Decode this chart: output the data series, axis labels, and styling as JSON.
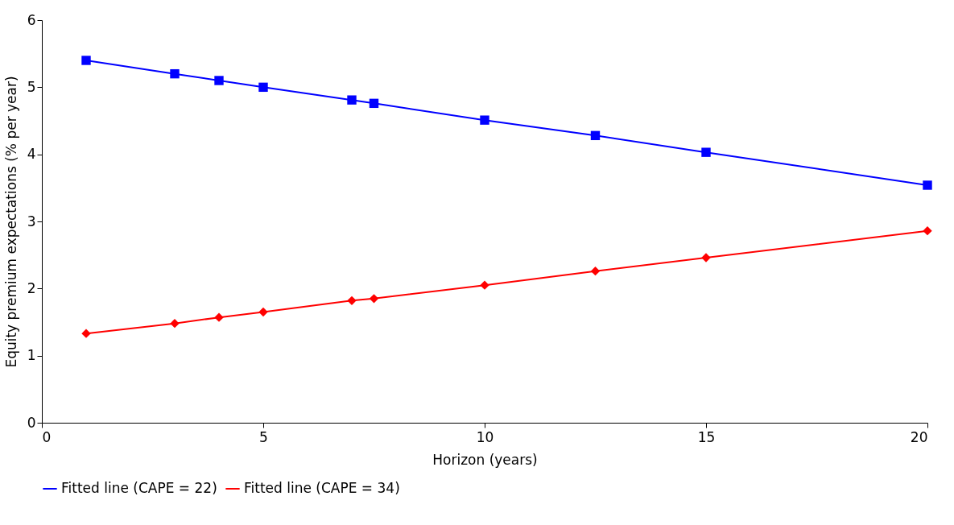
{
  "chart_data": {
    "type": "line",
    "xlabel": "Horizon (years)",
    "ylabel": "Equity premium expectations (% per year)",
    "x": [
      1,
      3,
      4,
      5,
      7,
      7.5,
      10,
      12.5,
      15,
      20
    ],
    "series": [
      {
        "name": "Fitted line (CAPE = 22)",
        "color": "#0000ff",
        "marker": "square",
        "values": [
          5.4,
          5.2,
          5.1,
          5.0,
          4.81,
          4.76,
          4.51,
          4.28,
          4.03,
          3.54
        ]
      },
      {
        "name": "Fitted line (CAPE = 34)",
        "color": "#ff0000",
        "marker": "diamond",
        "values": [
          1.33,
          1.48,
          1.57,
          1.65,
          1.82,
          1.85,
          2.05,
          2.26,
          2.46,
          2.86
        ]
      }
    ],
    "xlim": [
      0,
      20
    ],
    "xticks": [
      0,
      5,
      10,
      15,
      20
    ],
    "ylim": [
      0,
      6
    ],
    "yticks": [
      0,
      1,
      2,
      3,
      4,
      5,
      6
    ],
    "grid": false,
    "legend": "bottom",
    "line_style": "solid"
  }
}
